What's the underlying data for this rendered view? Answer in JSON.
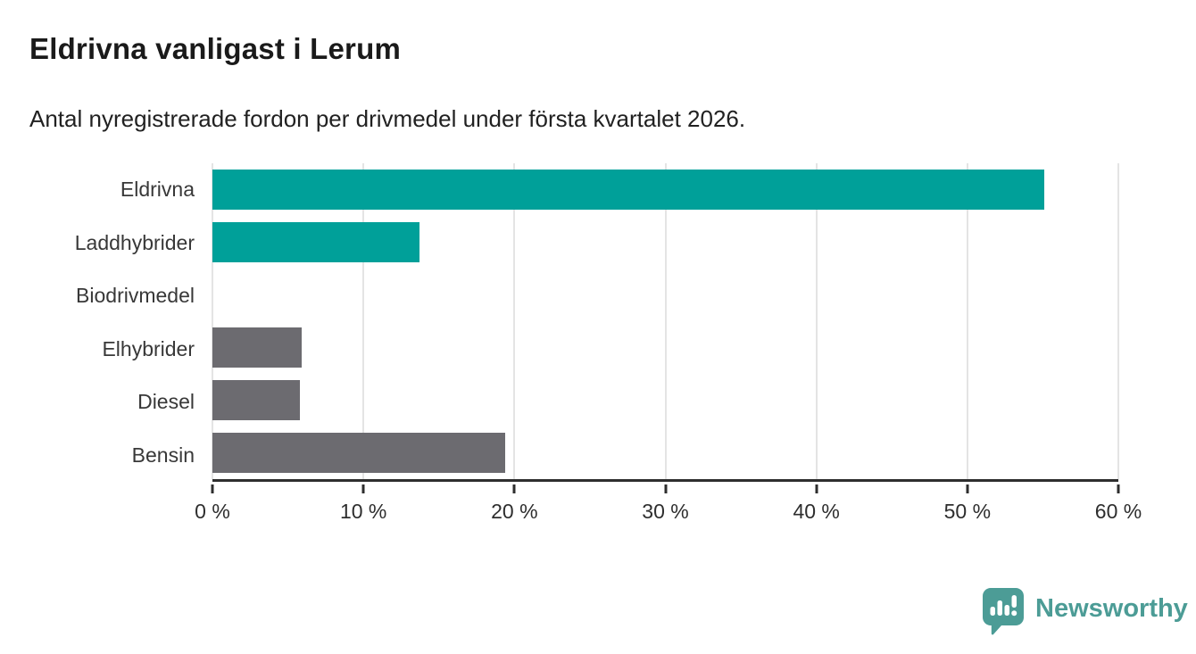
{
  "header": {
    "title": "Eldrivna vanligast i Lerum",
    "subtitle": "Antal nyregistrerade fordon per drivmedel under första kvartalet 2026."
  },
  "chart_data": {
    "type": "bar",
    "orientation": "horizontal",
    "title": "Eldrivna vanligast i Lerum",
    "subtitle": "Antal nyregistrerade fordon per drivmedel under första kvartalet 2026.",
    "categories": [
      "Eldrivna",
      "Laddhybrider",
      "Biodrivmedel",
      "Elhybrider",
      "Diesel",
      "Bensin"
    ],
    "values": [
      55.1,
      13.7,
      0,
      5.9,
      5.8,
      19.4
    ],
    "unit": "%",
    "bar_colors": [
      "#00A099",
      "#00A099",
      "#6C6B70",
      "#6C6B70",
      "#6C6B70",
      "#6C6B70"
    ],
    "x_ticks": [
      0,
      10,
      20,
      30,
      40,
      50,
      60
    ],
    "x_tick_labels": [
      "0 %",
      "10 %",
      "20 %",
      "30 %",
      "40 %",
      "50 %",
      "60 %"
    ],
    "xlim": [
      0,
      60
    ],
    "xlabel": "",
    "ylabel": "",
    "grid": "vertical-only",
    "legend": "none"
  },
  "colors": {
    "teal_bar": "#00A099",
    "gray_bar": "#6C6B70",
    "gridline": "#e4e4e4",
    "axis": "#2e2e2e",
    "label_text": "#383838",
    "brand_teal": "#4c9c96"
  },
  "footer": {
    "brand_name": "Newsworthy",
    "logo_icon": "newsworthy-bubble-chart-icon"
  }
}
